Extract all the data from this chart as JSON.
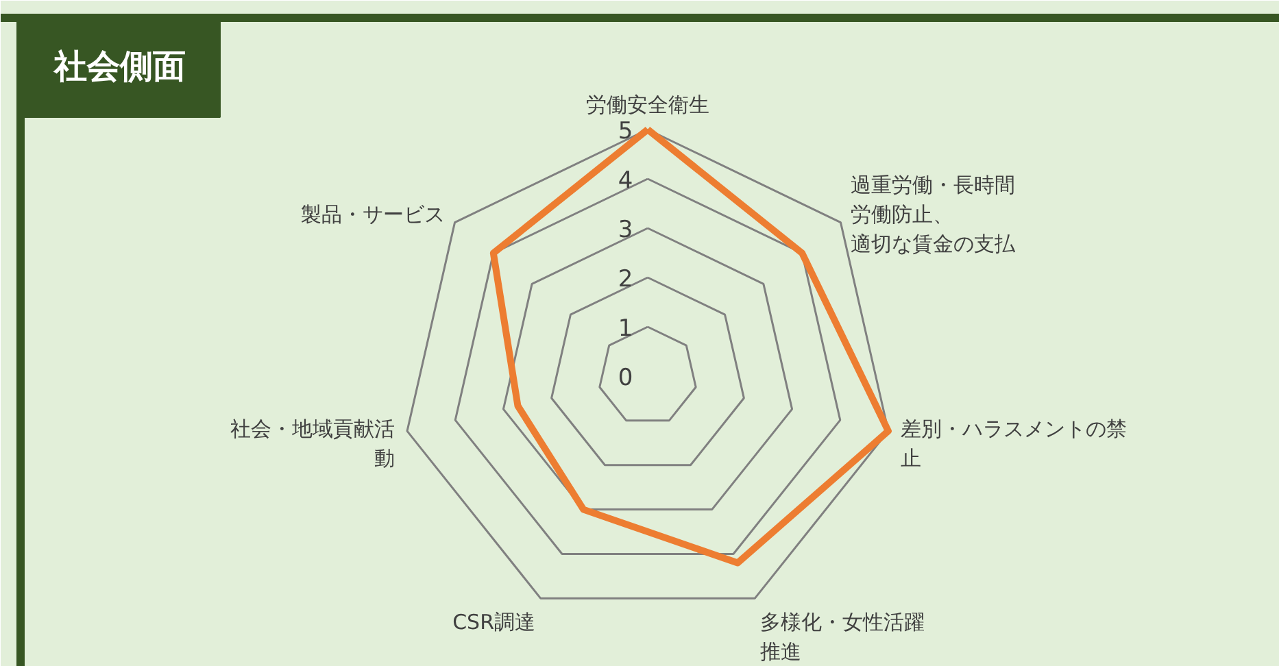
{
  "chart_data": {
    "type": "radar",
    "title": "社会側面",
    "categories": [
      "労働安全衛生",
      "過重労働・長時間労働防止、適切な賃金の支払",
      "差別・ハラスメントの禁止",
      "多様化・女性活躍推進",
      "CSR調達",
      "社会・地域貢献活動",
      "製品・サービス"
    ],
    "series": [
      {
        "color": "#ed7d31",
        "values": [
          5,
          4,
          5,
          4.2,
          3,
          2.7,
          4
        ]
      }
    ],
    "ylim": [
      0,
      5
    ],
    "yticks": [
      0,
      1,
      2,
      3,
      4,
      5
    ],
    "grid": true
  }
}
